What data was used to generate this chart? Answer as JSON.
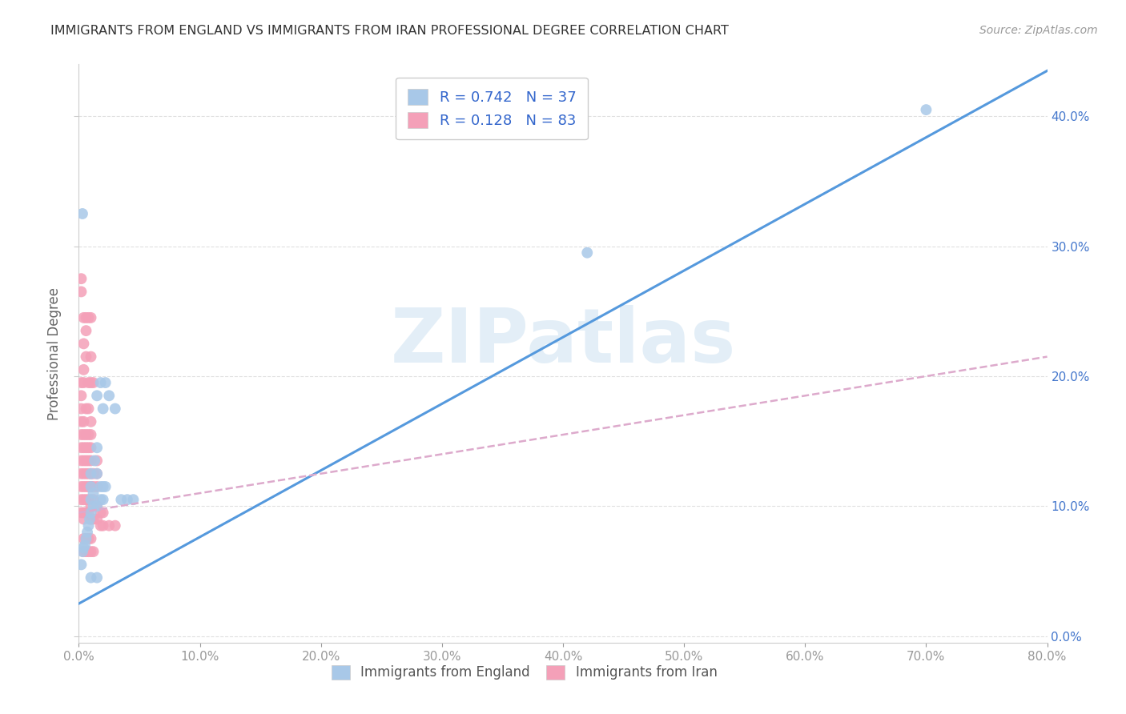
{
  "title": "IMMIGRANTS FROM ENGLAND VS IMMIGRANTS FROM IRAN PROFESSIONAL DEGREE CORRELATION CHART",
  "source": "Source: ZipAtlas.com",
  "ylabel": "Professional Degree",
  "xlim": [
    0,
    0.8
  ],
  "ylim": [
    -0.005,
    0.44
  ],
  "england_color": "#a8c8e8",
  "iran_color": "#f4a0b8",
  "england_line_color": "#5599dd",
  "iran_line_color": "#dd6688",
  "iran_line_dash_color": "#ddaacc",
  "right_axis_color": "#4477cc",
  "legend_text_color": "#3366cc",
  "tick_label_color": "#999999",
  "england_R": 0.742,
  "england_N": 37,
  "iran_R": 0.128,
  "iran_N": 83,
  "watermark": "ZIPatlas",
  "england_line_x": [
    0.0,
    0.8
  ],
  "england_line_y": [
    0.025,
    0.435
  ],
  "iran_line_x": [
    0.0,
    0.8
  ],
  "iran_line_y": [
    0.095,
    0.215
  ],
  "england_scatter": [
    [
      0.002,
      0.055
    ],
    [
      0.003,
      0.065
    ],
    [
      0.004,
      0.068
    ],
    [
      0.005,
      0.07
    ],
    [
      0.006,
      0.075
    ],
    [
      0.007,
      0.08
    ],
    [
      0.008,
      0.085
    ],
    [
      0.009,
      0.09
    ],
    [
      0.01,
      0.095
    ],
    [
      0.01,
      0.105
    ],
    [
      0.01,
      0.115
    ],
    [
      0.01,
      0.125
    ],
    [
      0.012,
      0.1
    ],
    [
      0.012,
      0.11
    ],
    [
      0.013,
      0.135
    ],
    [
      0.015,
      0.1
    ],
    [
      0.015,
      0.125
    ],
    [
      0.015,
      0.145
    ],
    [
      0.015,
      0.185
    ],
    [
      0.018,
      0.105
    ],
    [
      0.018,
      0.115
    ],
    [
      0.018,
      0.195
    ],
    [
      0.02,
      0.105
    ],
    [
      0.02,
      0.115
    ],
    [
      0.02,
      0.175
    ],
    [
      0.022,
      0.115
    ],
    [
      0.022,
      0.195
    ],
    [
      0.025,
      0.185
    ],
    [
      0.03,
      0.175
    ],
    [
      0.035,
      0.105
    ],
    [
      0.04,
      0.105
    ],
    [
      0.045,
      0.105
    ],
    [
      0.003,
      0.325
    ],
    [
      0.42,
      0.295
    ],
    [
      0.7,
      0.405
    ],
    [
      0.01,
      0.045
    ],
    [
      0.015,
      0.045
    ]
  ],
  "iran_scatter": [
    [
      0.002,
      0.095
    ],
    [
      0.002,
      0.105
    ],
    [
      0.002,
      0.115
    ],
    [
      0.002,
      0.125
    ],
    [
      0.002,
      0.135
    ],
    [
      0.002,
      0.145
    ],
    [
      0.002,
      0.155
    ],
    [
      0.002,
      0.195
    ],
    [
      0.002,
      0.265
    ],
    [
      0.002,
      0.275
    ],
    [
      0.004,
      0.09
    ],
    [
      0.004,
      0.095
    ],
    [
      0.004,
      0.105
    ],
    [
      0.004,
      0.115
    ],
    [
      0.004,
      0.125
    ],
    [
      0.004,
      0.135
    ],
    [
      0.004,
      0.145
    ],
    [
      0.004,
      0.155
    ],
    [
      0.004,
      0.165
    ],
    [
      0.004,
      0.195
    ],
    [
      0.004,
      0.205
    ],
    [
      0.004,
      0.245
    ],
    [
      0.006,
      0.095
    ],
    [
      0.006,
      0.105
    ],
    [
      0.006,
      0.115
    ],
    [
      0.006,
      0.125
    ],
    [
      0.006,
      0.135
    ],
    [
      0.006,
      0.145
    ],
    [
      0.006,
      0.155
    ],
    [
      0.006,
      0.175
    ],
    [
      0.006,
      0.215
    ],
    [
      0.006,
      0.235
    ],
    [
      0.006,
      0.245
    ],
    [
      0.008,
      0.095
    ],
    [
      0.008,
      0.105
    ],
    [
      0.008,
      0.115
    ],
    [
      0.008,
      0.125
    ],
    [
      0.008,
      0.135
    ],
    [
      0.008,
      0.145
    ],
    [
      0.008,
      0.155
    ],
    [
      0.008,
      0.175
    ],
    [
      0.008,
      0.195
    ],
    [
      0.008,
      0.245
    ],
    [
      0.01,
      0.09
    ],
    [
      0.01,
      0.1
    ],
    [
      0.01,
      0.115
    ],
    [
      0.01,
      0.125
    ],
    [
      0.01,
      0.135
    ],
    [
      0.01,
      0.145
    ],
    [
      0.01,
      0.155
    ],
    [
      0.01,
      0.165
    ],
    [
      0.01,
      0.195
    ],
    [
      0.01,
      0.215
    ],
    [
      0.01,
      0.245
    ],
    [
      0.012,
      0.09
    ],
    [
      0.012,
      0.105
    ],
    [
      0.012,
      0.115
    ],
    [
      0.012,
      0.125
    ],
    [
      0.012,
      0.195
    ],
    [
      0.015,
      0.09
    ],
    [
      0.015,
      0.1
    ],
    [
      0.015,
      0.115
    ],
    [
      0.015,
      0.125
    ],
    [
      0.015,
      0.135
    ],
    [
      0.018,
      0.085
    ],
    [
      0.018,
      0.095
    ],
    [
      0.02,
      0.085
    ],
    [
      0.02,
      0.095
    ],
    [
      0.025,
      0.085
    ],
    [
      0.03,
      0.085
    ],
    [
      0.002,
      0.165
    ],
    [
      0.002,
      0.175
    ],
    [
      0.004,
      0.075
    ],
    [
      0.004,
      0.065
    ],
    [
      0.006,
      0.065
    ],
    [
      0.006,
      0.075
    ],
    [
      0.008,
      0.065
    ],
    [
      0.008,
      0.075
    ],
    [
      0.01,
      0.065
    ],
    [
      0.01,
      0.075
    ],
    [
      0.012,
      0.065
    ],
    [
      0.004,
      0.225
    ],
    [
      0.002,
      0.185
    ]
  ]
}
